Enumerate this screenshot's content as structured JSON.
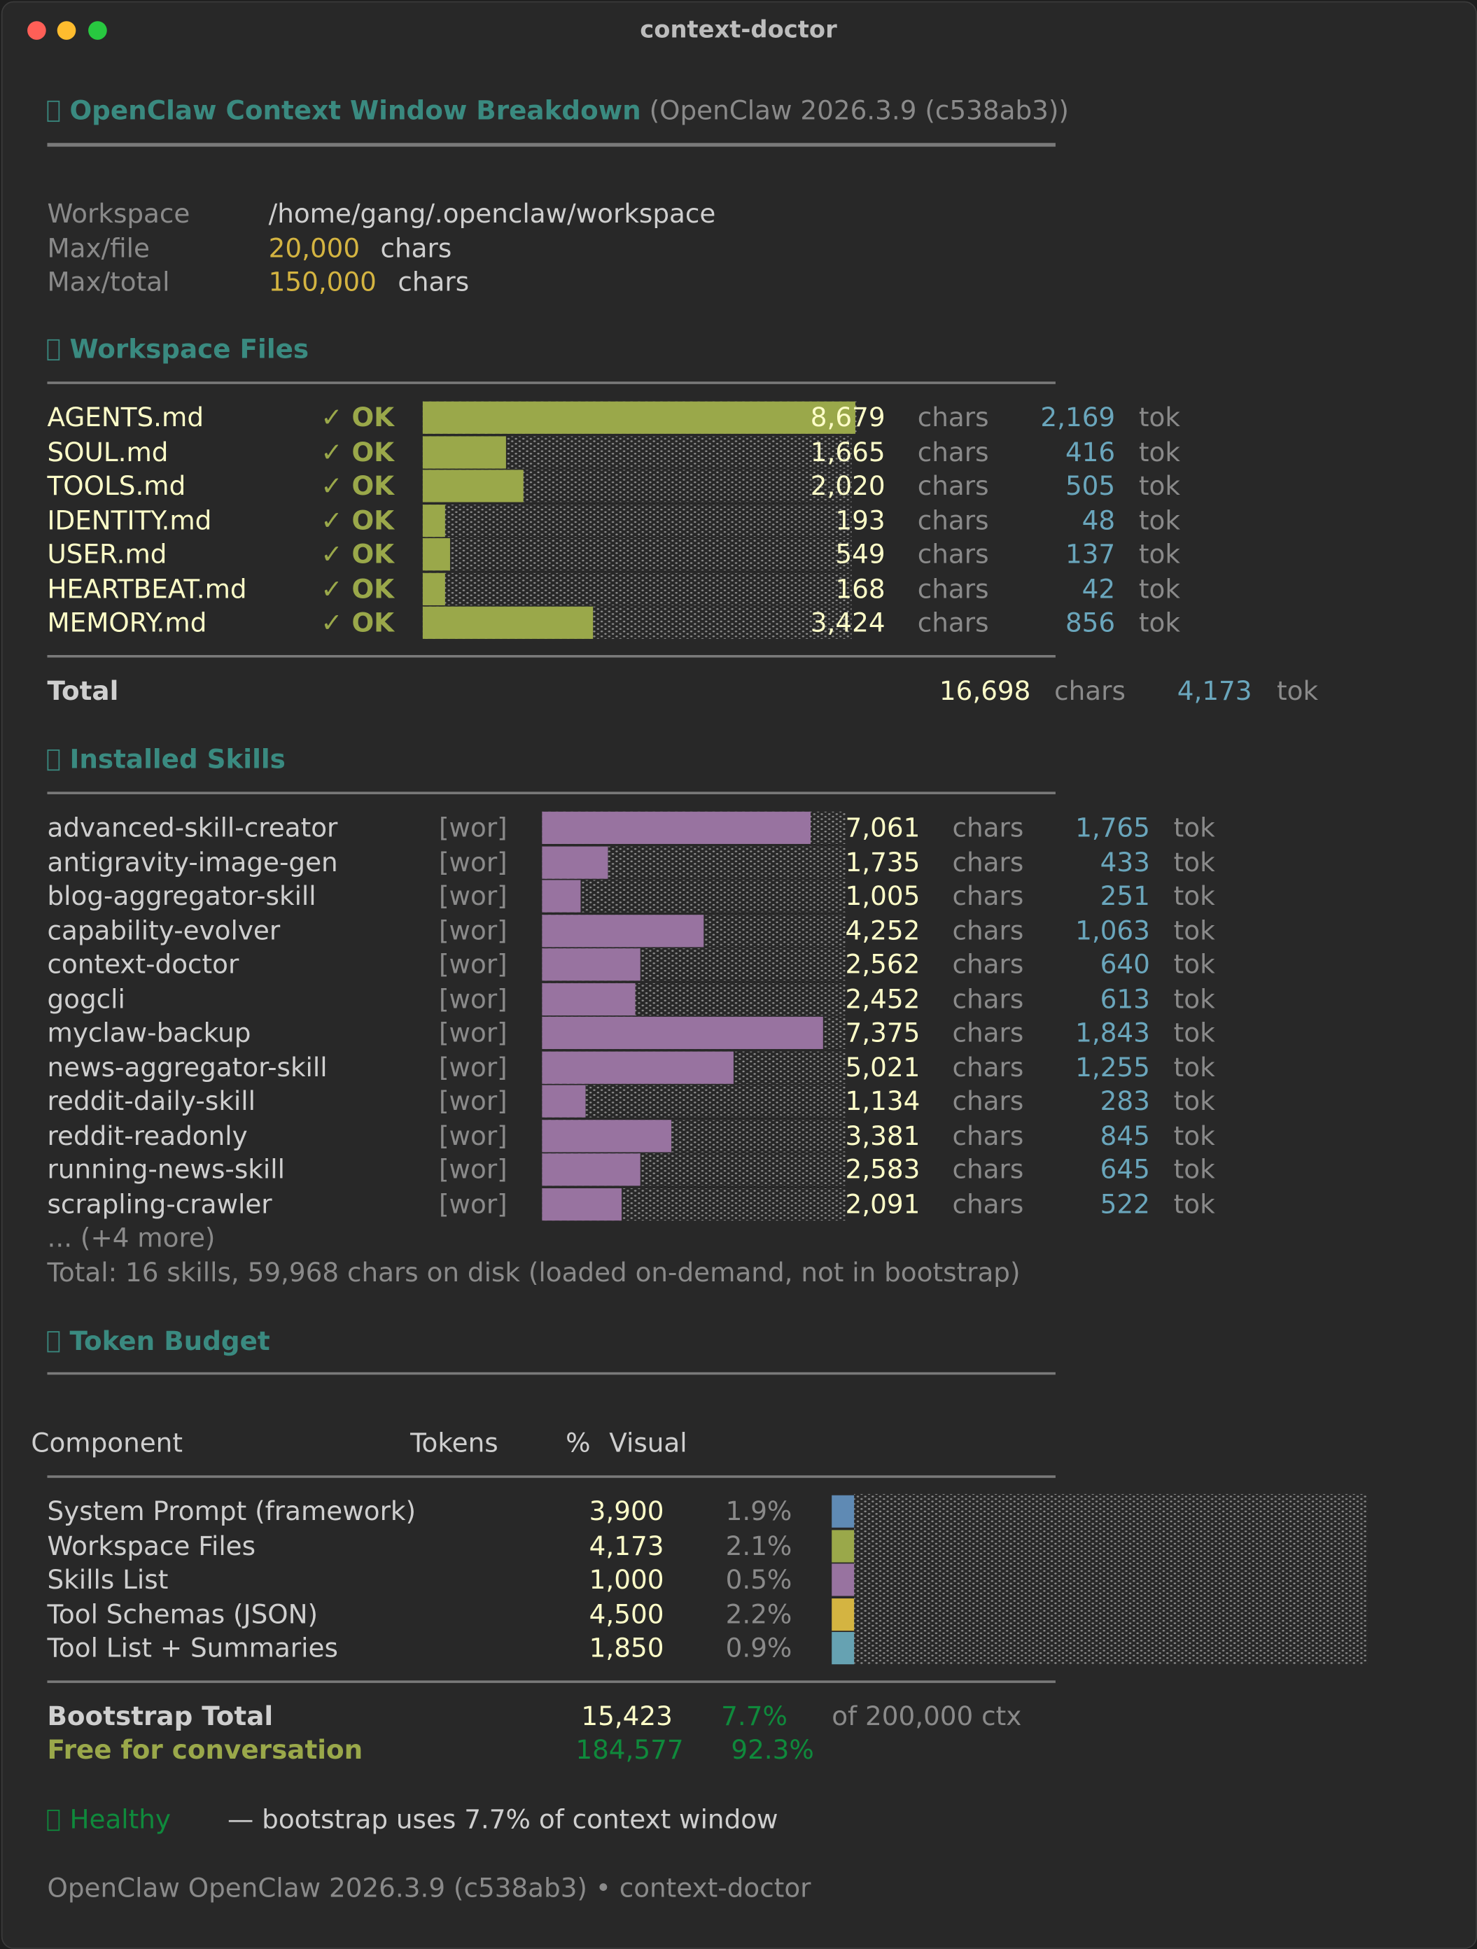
{
  "window": {
    "title": "context-doctor"
  },
  "header": {
    "title": "OpenClaw Context Window Breakdown",
    "version": "(OpenClaw 2026.3.9 (c538ab3))"
  },
  "config": [
    {
      "label": "Workspace",
      "value": "/home/gang/.openclaw/workspace",
      "unit": ""
    },
    {
      "label": "Max/file",
      "value": "20,000",
      "unit": "chars"
    },
    {
      "label": "Max/total",
      "value": "150,000",
      "unit": "chars"
    }
  ],
  "workspace_files": {
    "title": "Workspace Files",
    "max_chars": 8679,
    "files": [
      {
        "name": "AGENTS.md",
        "status": "✓ OK",
        "chars": 8679,
        "chars_text": "8,679",
        "unit": "chars",
        "tokens": "2,169",
        "tok_unit": "tok"
      },
      {
        "name": "SOUL.md",
        "status": "✓ OK",
        "chars": 1665,
        "chars_text": "1,665",
        "unit": "chars",
        "tokens": "416",
        "tok_unit": "tok"
      },
      {
        "name": "TOOLS.md",
        "status": "✓ OK",
        "chars": 2020,
        "chars_text": "2,020",
        "unit": "chars",
        "tokens": "505",
        "tok_unit": "tok"
      },
      {
        "name": "IDENTITY.md",
        "status": "✓ OK",
        "chars": 193,
        "chars_text": "193",
        "unit": "chars",
        "tokens": "48",
        "tok_unit": "tok"
      },
      {
        "name": "USER.md",
        "status": "✓ OK",
        "chars": 549,
        "chars_text": "549",
        "unit": "chars",
        "tokens": "137",
        "tok_unit": "tok"
      },
      {
        "name": "HEARTBEAT.md",
        "status": "✓ OK",
        "chars": 168,
        "chars_text": "168",
        "unit": "chars",
        "tokens": "42",
        "tok_unit": "tok"
      },
      {
        "name": "MEMORY.md",
        "status": "✓ OK",
        "chars": 3424,
        "chars_text": "3,424",
        "unit": "chars",
        "tokens": "856",
        "tok_unit": "tok"
      }
    ],
    "total": {
      "label": "Total",
      "chars": "16,698",
      "unit": "chars",
      "tokens": "4,173",
      "tok_unit": "tok"
    }
  },
  "skills": {
    "title": "Installed Skills",
    "max_chars": 7375,
    "items": [
      {
        "name": "advanced-skill-creator",
        "tag": "[wor]",
        "chars": 7061,
        "chars_text": "7,061",
        "unit": "chars",
        "tokens": "1,765",
        "tok_unit": "tok"
      },
      {
        "name": "antigravity-image-gen",
        "tag": "[wor]",
        "chars": 1735,
        "chars_text": "1,735",
        "unit": "chars",
        "tokens": "433",
        "tok_unit": "tok"
      },
      {
        "name": "blog-aggregator-skill",
        "tag": "[wor]",
        "chars": 1005,
        "chars_text": "1,005",
        "unit": "chars",
        "tokens": "251",
        "tok_unit": "tok"
      },
      {
        "name": "capability-evolver",
        "tag": "[wor]",
        "chars": 4252,
        "chars_text": "4,252",
        "unit": "chars",
        "tokens": "1,063",
        "tok_unit": "tok"
      },
      {
        "name": "context-doctor",
        "tag": "[wor]",
        "chars": 2562,
        "chars_text": "2,562",
        "unit": "chars",
        "tokens": "640",
        "tok_unit": "tok"
      },
      {
        "name": "gogcli",
        "tag": "[wor]",
        "chars": 2452,
        "chars_text": "2,452",
        "unit": "chars",
        "tokens": "613",
        "tok_unit": "tok"
      },
      {
        "name": "myclaw-backup",
        "tag": "[wor]",
        "chars": 7375,
        "chars_text": "7,375",
        "unit": "chars",
        "tokens": "1,843",
        "tok_unit": "tok"
      },
      {
        "name": "news-aggregator-skill",
        "tag": "[wor]",
        "chars": 5021,
        "chars_text": "5,021",
        "unit": "chars",
        "tokens": "1,255",
        "tok_unit": "tok"
      },
      {
        "name": "reddit-daily-skill",
        "tag": "[wor]",
        "chars": 1134,
        "chars_text": "1,134",
        "unit": "chars",
        "tokens": "283",
        "tok_unit": "tok"
      },
      {
        "name": "reddit-readonly",
        "tag": "[wor]",
        "chars": 3381,
        "chars_text": "3,381",
        "unit": "chars",
        "tokens": "845",
        "tok_unit": "tok"
      },
      {
        "name": "running-news-skill",
        "tag": "[wor]",
        "chars": 2583,
        "chars_text": "2,583",
        "unit": "chars",
        "tokens": "645",
        "tok_unit": "tok"
      },
      {
        "name": "scrapling-crawler",
        "tag": "[wor]",
        "chars": 2091,
        "chars_text": "2,091",
        "unit": "chars",
        "tokens": "522",
        "tok_unit": "tok"
      }
    ],
    "more": "... (+4 more)",
    "summary": "Total: 16 skills, 59,968 chars on disk (loaded on-demand, not in bootstrap)"
  },
  "token_budget": {
    "title": "Token Budget",
    "headers": {
      "component": "Component",
      "tokens": "Tokens",
      "pct": "%",
      "visual": "Visual"
    },
    "rows": [
      {
        "label": "System Prompt (framework)",
        "tokens": "3,900",
        "pct": "1.9%",
        "pct_value": 1.9,
        "color": "#5f8ab4"
      },
      {
        "label": "Workspace Files",
        "tokens": "4,173",
        "pct": "2.1%",
        "pct_value": 2.1,
        "color": "#9aa84a"
      },
      {
        "label": "Skills List",
        "tokens": "1,000",
        "pct": "0.5%",
        "pct_value": 0.5,
        "color": "#9873a0"
      },
      {
        "label": "Tool Schemas (JSON)",
        "tokens": "4,500",
        "pct": "2.2%",
        "pct_value": 2.2,
        "color": "#d4b441"
      },
      {
        "label": "Tool List + Summaries",
        "tokens": "1,850",
        "pct": "0.9%",
        "pct_value": 0.9,
        "color": "#66a2b2"
      }
    ],
    "bootstrap": {
      "label": "Bootstrap Total",
      "tokens": "15,423",
      "pct": "7.7%",
      "ctx": "of 200,000 ctx"
    },
    "free": {
      "label": "Free for conversation",
      "tokens": "184,577",
      "pct": "92.3%"
    }
  },
  "health": {
    "status": "Healthy",
    "message": "— bootstrap uses 7.7% of context window"
  },
  "footer": "OpenClaw OpenClaw 2026.3.9 (c538ab3) • context-doctor",
  "colors": {
    "olive": "#9aa84a",
    "purple": "#9873a0",
    "teal": "#3a8a80",
    "yellow": "#d4b441",
    "green": "#0f8a3c"
  }
}
